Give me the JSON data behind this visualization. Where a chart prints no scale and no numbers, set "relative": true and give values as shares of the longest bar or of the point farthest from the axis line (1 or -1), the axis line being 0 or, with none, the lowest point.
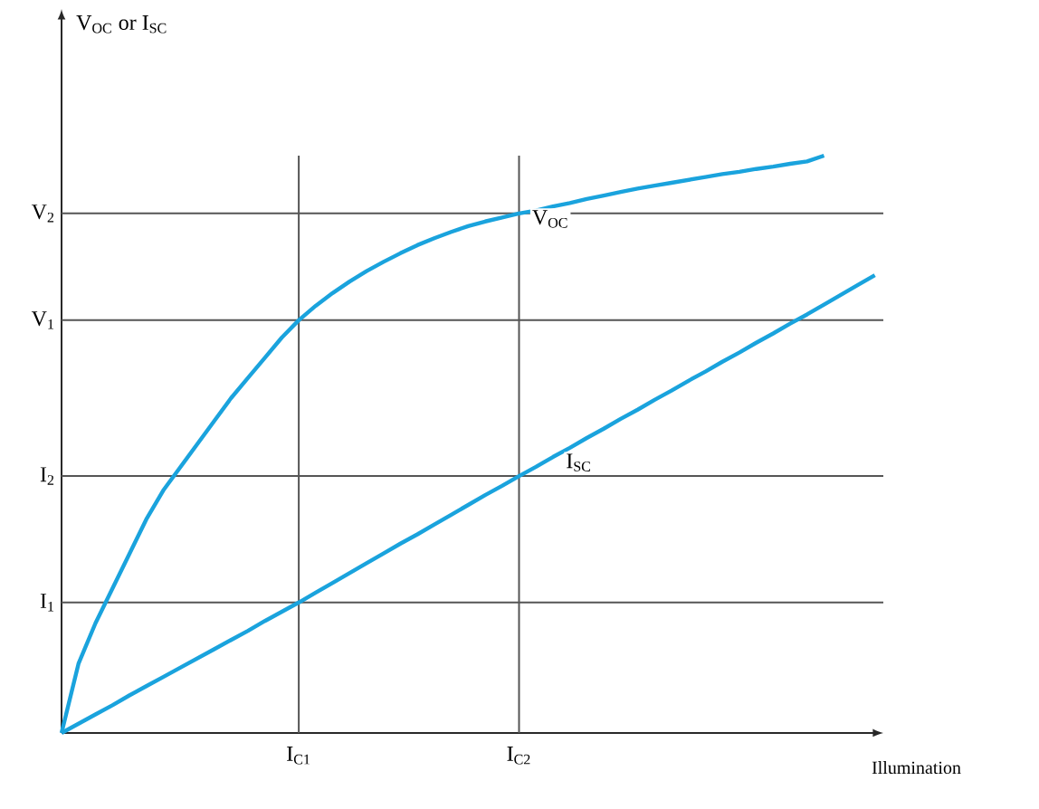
{
  "chart_data": {
    "type": "line",
    "relative": true,
    "annotations": [
      "V$_{OC}$ or I$_{SC}$"
    ],
    "xlabel": "Illumination",
    "categories": [
      null,
      null,
      null,
      null,
      null,
      null,
      null,
      null,
      null,
      null,
      null,
      null,
      null,
      null,
      "I$_{C1}$",
      null,
      null,
      null,
      null,
      null,
      null,
      null,
      null,
      null,
      null,
      null,
      null,
      "I$_{C2}$",
      null,
      null,
      null,
      null,
      null,
      null,
      null,
      null,
      null,
      null,
      null,
      null,
      null,
      null,
      null,
      null,
      null,
      null,
      null,
      null,
      null
    ],
    "series": [
      {
        "name": "V$_{OC}$",
        "color": "#1aa3dd",
        "values": [
          0,
          0.12,
          0.19,
          0.25,
          0.31,
          0.37,
          0.42,
          0.46,
          0.5,
          0.54,
          0.58,
          0.615,
          0.65,
          0.685,
          0.715,
          0.74,
          0.762,
          0.782,
          0.8,
          0.816,
          0.831,
          0.845,
          0.857,
          0.868,
          0.878,
          0.886,
          0.893,
          0.9,
          0.905,
          0.912,
          0.918,
          0.925,
          0.931,
          0.937,
          0.943,
          0.948,
          0.953,
          0.958,
          0.963,
          0.968,
          0.972,
          0.977,
          0.981,
          0.986,
          0.99,
          1,
          null,
          null,
          null
        ]
      },
      {
        "name": "I$_{SC}$",
        "color": "#1aa3dd",
        "values": [
          0,
          0.016,
          0.032,
          0.048,
          0.065,
          0.081,
          0.097,
          0.113,
          0.129,
          0.145,
          0.161,
          0.177,
          0.194,
          0.21,
          0.226,
          0.243,
          0.26,
          0.277,
          0.294,
          0.311,
          0.328,
          0.344,
          0.361,
          0.378,
          0.395,
          0.412,
          0.428,
          0.445,
          0.461,
          0.478,
          0.494,
          0.511,
          0.527,
          0.544,
          0.56,
          0.577,
          0.593,
          0.61,
          0.626,
          0.643,
          0.659,
          0.676,
          0.692,
          0.709,
          0.725,
          0.742,
          0.759,
          0.776,
          0.793
        ]
      }
    ],
    "ref_lines": [
      {
        "axis": "y",
        "value": 0.9,
        "label": "V$_{2}$",
        "color": "#555555"
      },
      {
        "axis": "y",
        "value": 0.715,
        "label": "V$_{1}$",
        "color": "#555555"
      },
      {
        "axis": "y",
        "value": 0.445,
        "label": "I$_{2}$",
        "color": "#555555"
      },
      {
        "axis": "y",
        "value": 0.226,
        "label": "I$_{1}$",
        "color": "#555555"
      },
      {
        "axis": "x",
        "value": "I$_{C1}$",
        "color": "#555555"
      },
      {
        "axis": "x",
        "value": "I$_{C2}$",
        "color": "#555555"
      }
    ],
    "marker": "none",
    "line_style": "solid"
  }
}
